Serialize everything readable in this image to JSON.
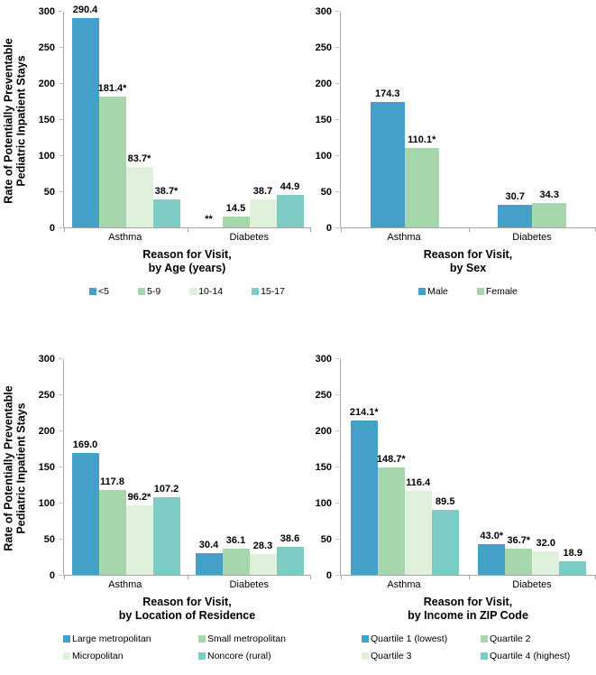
{
  "colors": {
    "series": [
      "#45A0C9",
      "#A6D7AC",
      "#DFF1DA",
      "#7CCBC5"
    ],
    "axis": "#A6A6A6",
    "text": "#000000"
  },
  "chart_data": [
    {
      "type": "bar",
      "position": "top-left",
      "ylabel": [
        "Rate of Potentially Preventable",
        "Pediatric Inpatient Stays"
      ],
      "xlabel": [
        "Reason for Visit,",
        "by Age (years)"
      ],
      "categories": [
        "Asthma",
        "Diabetes"
      ],
      "ylim": [
        0,
        300
      ],
      "yticks": [
        0,
        50,
        100,
        150,
        200,
        250,
        300
      ],
      "legend_layout": "row",
      "legend_position": "bottom",
      "grid": false,
      "series": [
        {
          "name": "<5",
          "values": [
            290.4,
            null
          ],
          "labels": [
            "290.4",
            "**"
          ]
        },
        {
          "name": "5-9",
          "values": [
            181.4,
            14.5
          ],
          "labels": [
            "181.4*",
            "14.5"
          ]
        },
        {
          "name": "10-14",
          "values": [
            83.7,
            38.7
          ],
          "labels": [
            "83.7*",
            "38.7"
          ]
        },
        {
          "name": "15-17",
          "values": [
            38.7,
            44.9
          ],
          "labels": [
            "38.7*",
            "44.9"
          ]
        }
      ]
    },
    {
      "type": "bar",
      "position": "top-right",
      "ylabel": null,
      "xlabel": [
        "Reason for Visit,",
        "by Sex"
      ],
      "categories": [
        "Asthma",
        "Diabetes"
      ],
      "ylim": [
        0,
        300
      ],
      "yticks": [
        0,
        50,
        100,
        150,
        200,
        250,
        300
      ],
      "legend_layout": "row",
      "legend_position": "bottom",
      "grid": false,
      "series": [
        {
          "name": "Male",
          "values": [
            174.3,
            30.7
          ],
          "labels": [
            "174.3",
            "30.7"
          ]
        },
        {
          "name": "Female",
          "values": [
            110.1,
            34.3
          ],
          "labels": [
            "110.1*",
            "34.3"
          ]
        }
      ]
    },
    {
      "type": "bar",
      "position": "bottom-left",
      "ylabel": [
        "Rate of Potentially Preventable",
        "Pediatric Inpatient Stays"
      ],
      "xlabel": [
        "Reason for Visit,",
        "by Location of Residence"
      ],
      "categories": [
        "Asthma",
        "Diabetes"
      ],
      "ylim": [
        0,
        300
      ],
      "yticks": [
        0,
        50,
        100,
        150,
        200,
        250,
        300
      ],
      "legend_layout": "grid",
      "legend_position": "bottom",
      "grid": false,
      "series": [
        {
          "name": "Large metropolitan",
          "values": [
            169.0,
            30.4
          ],
          "labels": [
            "169.0",
            "30.4"
          ]
        },
        {
          "name": "Small metropolitan",
          "values": [
            117.8,
            36.1
          ],
          "labels": [
            "117.8",
            "36.1"
          ]
        },
        {
          "name": "Micropolitan",
          "values": [
            96.2,
            28.3
          ],
          "labels": [
            "96.2*",
            "28.3"
          ]
        },
        {
          "name": "Noncore (rural)",
          "values": [
            107.2,
            38.6
          ],
          "labels": [
            "107.2",
            "38.6"
          ]
        }
      ]
    },
    {
      "type": "bar",
      "position": "bottom-right",
      "ylabel": null,
      "xlabel": [
        "Reason for Visit,",
        "by Income in ZIP Code"
      ],
      "categories": [
        "Asthma",
        "Diabetes"
      ],
      "ylim": [
        0,
        300
      ],
      "yticks": [
        0,
        50,
        100,
        150,
        200,
        250,
        300
      ],
      "legend_layout": "grid",
      "legend_position": "bottom",
      "grid": false,
      "series": [
        {
          "name": "Quartile 1 (lowest)",
          "values": [
            214.1,
            43.0
          ],
          "labels": [
            "214.1*",
            "43.0*"
          ]
        },
        {
          "name": "Quartile 2",
          "values": [
            148.7,
            36.7
          ],
          "labels": [
            "148.7*",
            "36.7*"
          ]
        },
        {
          "name": "Quartile 3",
          "values": [
            116.4,
            32.0
          ],
          "labels": [
            "116.4",
            "32.0"
          ]
        },
        {
          "name": "Quartile 4 (highest)",
          "values": [
            89.5,
            18.9
          ],
          "labels": [
            "89.5",
            "18.9"
          ]
        }
      ]
    }
  ]
}
